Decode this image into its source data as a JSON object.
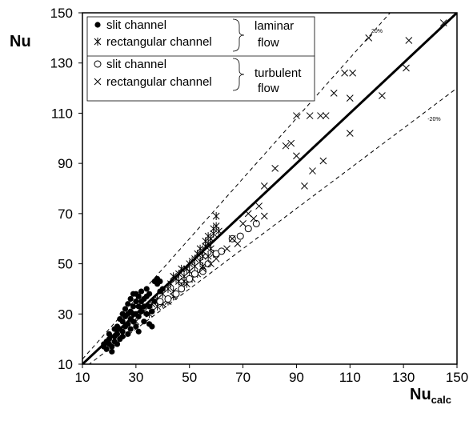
{
  "chart_data": {
    "type": "scatter",
    "ylabel": "Nu",
    "xlabel_main": "Nu",
    "xlabel_sub": "calc",
    "xlim": [
      10,
      150
    ],
    "ylim": [
      10,
      150
    ],
    "xticks": [
      "10",
      "30",
      "50",
      "70",
      "90",
      "110",
      "130",
      "150"
    ],
    "yticks": [
      "10",
      "30",
      "50",
      "70",
      "90",
      "110",
      "130",
      "150"
    ],
    "grid": false,
    "legend": {
      "placement": "top-left",
      "items": [
        {
          "label": "slit channel",
          "marker": "filled-circle"
        },
        {
          "label": "rectangular channel",
          "marker": "asterisk"
        },
        {
          "label": "slit channel",
          "marker": "open-circle"
        },
        {
          "label": "rectangular channel",
          "marker": "cross"
        }
      ],
      "group_labels": [
        {
          "line1": "laminar",
          "line2": "flow"
        },
        {
          "line1": "turbulent",
          "line2": "flow"
        }
      ]
    },
    "reference_lines": [
      {
        "label": "",
        "slope": 1.0,
        "style": "solid"
      },
      {
        "label": "20%",
        "slope": 1.2,
        "style": "dashed"
      },
      {
        "label": "-20%",
        "slope": 0.8,
        "style": "dashed"
      }
    ],
    "series": [
      {
        "name": "slit channel (laminar)",
        "marker": "filled-circle",
        "points": [
          [
            18,
            18
          ],
          [
            18,
            17
          ],
          [
            19,
            19
          ],
          [
            19,
            16
          ],
          [
            20,
            18
          ],
          [
            20,
            20
          ],
          [
            21,
            17
          ],
          [
            21,
            15
          ],
          [
            22,
            21
          ],
          [
            22,
            19
          ],
          [
            23,
            22
          ],
          [
            23,
            18
          ],
          [
            23,
            25
          ],
          [
            24,
            24
          ],
          [
            24,
            20
          ],
          [
            24,
            28
          ],
          [
            25,
            23
          ],
          [
            25,
            27
          ],
          [
            25,
            21
          ],
          [
            26,
            25
          ],
          [
            26,
            29
          ],
          [
            26,
            32
          ],
          [
            27,
            26
          ],
          [
            27,
            30
          ],
          [
            27,
            22
          ],
          [
            27,
            34
          ],
          [
            28,
            28
          ],
          [
            28,
            31
          ],
          [
            28,
            24
          ],
          [
            28,
            36
          ],
          [
            29,
            33
          ],
          [
            29,
            27
          ],
          [
            29,
            38
          ],
          [
            30,
            30
          ],
          [
            30,
            35
          ],
          [
            30,
            25
          ],
          [
            30,
            38
          ],
          [
            31,
            33
          ],
          [
            31,
            29
          ],
          [
            31,
            37
          ],
          [
            31,
            23
          ],
          [
            32,
            35
          ],
          [
            32,
            31
          ],
          [
            32,
            39
          ],
          [
            33,
            27
          ],
          [
            33,
            33
          ],
          [
            34,
            37
          ],
          [
            34,
            40
          ],
          [
            34,
            30
          ],
          [
            35,
            33
          ],
          [
            35,
            26
          ],
          [
            35,
            38
          ],
          [
            36,
            31
          ],
          [
            36,
            25
          ],
          [
            37,
            35
          ],
          [
            37,
            43
          ],
          [
            38,
            44
          ],
          [
            38,
            42
          ],
          [
            39,
            43
          ],
          [
            39,
            39
          ],
          [
            40,
            40
          ],
          [
            33,
            36
          ],
          [
            29,
            30
          ],
          [
            25,
            30
          ],
          [
            22,
            24
          ],
          [
            20,
            22
          ]
        ]
      },
      {
        "name": "rectangular channel (laminar)",
        "marker": "asterisk",
        "points": [
          [
            30,
            27
          ],
          [
            33,
            31
          ],
          [
            35,
            30
          ],
          [
            36,
            34
          ],
          [
            38,
            33
          ],
          [
            38,
            36
          ],
          [
            40,
            38
          ],
          [
            42,
            40
          ],
          [
            43,
            42
          ],
          [
            44,
            45
          ],
          [
            44,
            39
          ],
          [
            45,
            44
          ],
          [
            46,
            46
          ],
          [
            47,
            48
          ],
          [
            48,
            45
          ],
          [
            48,
            43
          ],
          [
            49,
            48
          ],
          [
            50,
            50
          ],
          [
            50,
            47
          ],
          [
            51,
            51
          ],
          [
            52,
            52
          ],
          [
            52,
            49
          ],
          [
            53,
            54
          ],
          [
            54,
            51
          ],
          [
            54,
            56
          ],
          [
            55,
            55
          ],
          [
            55,
            53
          ],
          [
            56,
            57
          ],
          [
            56,
            59
          ],
          [
            57,
            58
          ],
          [
            57,
            61
          ],
          [
            58,
            60
          ],
          [
            58,
            56
          ],
          [
            59,
            64
          ],
          [
            59,
            62
          ],
          [
            60,
            65
          ],
          [
            60,
            69
          ],
          [
            61,
            63
          ],
          [
            59,
            54
          ],
          [
            57,
            53
          ],
          [
            55,
            49
          ],
          [
            53,
            46
          ],
          [
            51,
            44
          ],
          [
            49,
            42
          ],
          [
            47,
            41
          ],
          [
            46,
            43
          ],
          [
            44,
            37
          ],
          [
            42,
            35
          ],
          [
            40,
            34
          ]
        ]
      },
      {
        "name": "slit channel (turbulent)",
        "marker": "open-circle",
        "points": [
          [
            39,
            35
          ],
          [
            42,
            36
          ],
          [
            45,
            38
          ],
          [
            47,
            40
          ],
          [
            50,
            44
          ],
          [
            52,
            46
          ],
          [
            55,
            47
          ],
          [
            57,
            50
          ],
          [
            60,
            54
          ],
          [
            62,
            55
          ],
          [
            66,
            60
          ],
          [
            69,
            61
          ],
          [
            72,
            64
          ],
          [
            75,
            66
          ]
        ]
      },
      {
        "name": "rectangular channel (turbulent)",
        "marker": "cross",
        "points": [
          [
            55,
            48
          ],
          [
            58,
            50
          ],
          [
            60,
            52
          ],
          [
            64,
            56
          ],
          [
            66,
            60
          ],
          [
            68,
            58
          ],
          [
            70,
            66
          ],
          [
            72,
            70
          ],
          [
            74,
            68
          ],
          [
            76,
            73
          ],
          [
            78,
            69
          ],
          [
            78,
            81
          ],
          [
            82,
            88
          ],
          [
            86,
            97
          ],
          [
            88,
            98
          ],
          [
            90,
            93
          ],
          [
            90,
            109
          ],
          [
            93,
            81
          ],
          [
            95,
            109
          ],
          [
            96,
            87
          ],
          [
            99,
            109
          ],
          [
            100,
            91
          ],
          [
            101,
            109
          ],
          [
            104,
            118
          ],
          [
            108,
            126
          ],
          [
            110,
            102
          ],
          [
            110,
            116
          ],
          [
            111,
            126
          ],
          [
            117,
            140
          ],
          [
            122,
            117
          ],
          [
            131,
            128
          ],
          [
            132,
            139
          ],
          [
            145,
            146
          ]
        ]
      }
    ]
  }
}
